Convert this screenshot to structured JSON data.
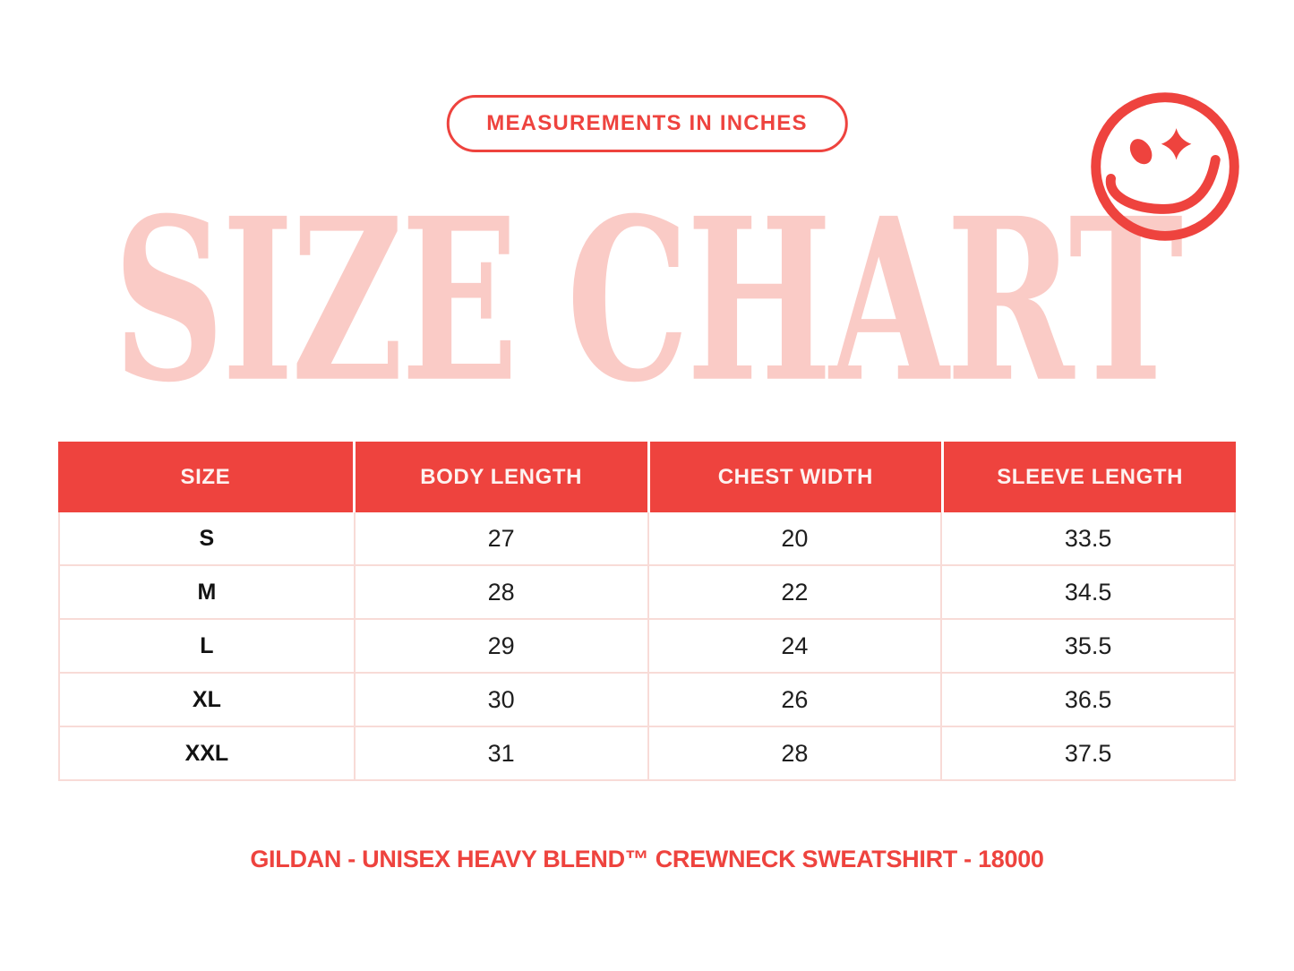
{
  "colors": {
    "accent_red": "#EE433E",
    "title_pink": "#FACBC6",
    "table_line_pink": "#F8DBD7",
    "text_dark": "#1E1E1E",
    "background": "#FFFFFF"
  },
  "icons": {
    "smiley": "winking-smiley-with-sparkle-eye"
  },
  "chart_data": {
    "type": "table",
    "title": "SIZE CHART",
    "subtitle": "MEASUREMENTS IN INCHES",
    "units": "inches",
    "columns": [
      "SIZE",
      "BODY LENGTH",
      "CHEST WIDTH",
      "SLEEVE LENGTH"
    ],
    "rows": [
      [
        "S",
        27,
        20,
        33.5
      ],
      [
        "M",
        28,
        22,
        34.5
      ],
      [
        "L",
        29,
        24,
        35.5
      ],
      [
        "XL",
        30,
        26,
        36.5
      ],
      [
        "XXL",
        31,
        28,
        37.5
      ]
    ],
    "caption": "GILDAN - UNISEX HEAVY BLEND™ CREWNECK SWEATSHIRT - 18000",
    "legend_position": "none",
    "grid": true
  }
}
